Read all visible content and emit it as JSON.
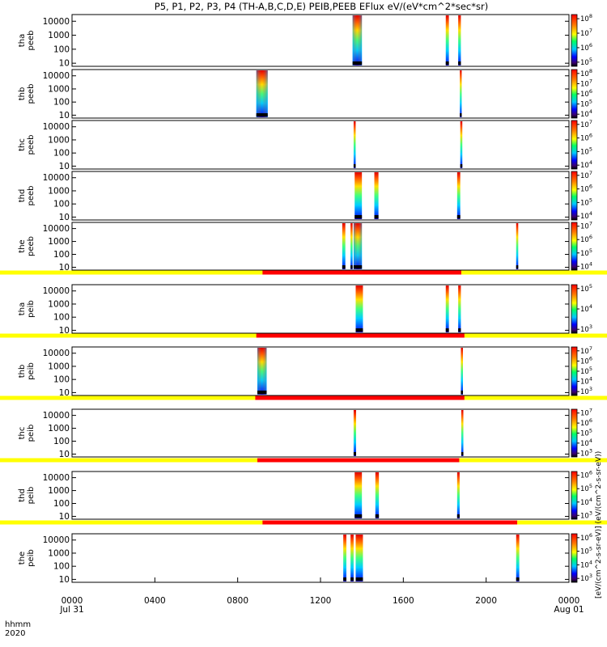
{
  "chart_data": {
    "type": "heatmap",
    "title": "P5, P1, P2, P3, P4 (TH-A,B,C,D,E) PEIB,PEEB EFlux eV/(eV*cm^2*sec*sr)",
    "x_axis": {
      "label_lines": [
        "hhmm",
        "2020"
      ],
      "ticks": [
        {
          "t": 0,
          "label": "0000",
          "sub": "Jul 31"
        },
        {
          "t": 4,
          "label": "0400",
          "sub": ""
        },
        {
          "t": 8,
          "label": "0800",
          "sub": ""
        },
        {
          "t": 12,
          "label": "1200",
          "sub": ""
        },
        {
          "t": 16,
          "label": "1600",
          "sub": ""
        },
        {
          "t": 20,
          "label": "2000",
          "sub": ""
        },
        {
          "t": 24,
          "label": "0000",
          "sub": "Aug 01"
        }
      ],
      "range_hours": [
        0,
        24
      ]
    },
    "y_scale": "log",
    "y_ticks": [
      "10",
      "100",
      "1000",
      "10000"
    ],
    "colorbar_label": "[eV/(cm^2-s-sr-eV)] (eV/(cm^2-s-sr-eV))",
    "panels": [
      {
        "ylabel": [
          "tha",
          "peeb"
        ],
        "cb_ticks": [
          "10^5",
          "10^6",
          "10^7",
          "10^8"
        ],
        "cb_exp": [
          5,
          6,
          7,
          8
        ],
        "bursts": [
          [
            13.55,
            14.0
          ],
          [
            18.05,
            18.2
          ],
          [
            18.65,
            18.78
          ]
        ],
        "state_bar": null
      },
      {
        "ylabel": [
          "thb",
          "peeb"
        ],
        "cb_ticks": [
          "10^4",
          "10^5",
          "10^6",
          "10^7",
          "10^8"
        ],
        "cb_exp": [
          4,
          5,
          6,
          7,
          8
        ],
        "bursts": [
          [
            8.9,
            9.45
          ],
          [
            18.73,
            18.82
          ]
        ],
        "state_bar": null
      },
      {
        "ylabel": [
          "thc",
          "peeb"
        ],
        "cb_ticks": [
          "10^4",
          "10^5",
          "10^6",
          "10^7"
        ],
        "cb_exp": [
          4,
          5,
          6,
          7
        ],
        "bursts": [
          [
            13.6,
            13.7
          ],
          [
            18.75,
            18.85
          ]
        ],
        "state_bar": null
      },
      {
        "ylabel": [
          "thd",
          "peeb"
        ],
        "cb_ticks": [
          "10^4",
          "10^5",
          "10^6",
          "10^7"
        ],
        "cb_exp": [
          4,
          5,
          6,
          7
        ],
        "bursts": [
          [
            13.65,
            14.0
          ],
          [
            14.6,
            14.8
          ],
          [
            18.6,
            18.75
          ]
        ],
        "state_bar": null
      },
      {
        "ylabel": [
          "the",
          "peeb"
        ],
        "cb_ticks": [
          "10^4",
          "10^5",
          "10^6",
          "10^7"
        ],
        "cb_exp": [
          4,
          5,
          6,
          7
        ],
        "bursts": [
          [
            13.05,
            13.2
          ],
          [
            13.45,
            13.55
          ],
          [
            13.6,
            14.0
          ],
          [
            21.45,
            21.55
          ]
        ],
        "state_bar": {
          "red": [
            9.2,
            18.8
          ]
        }
      },
      {
        "ylabel": [
          "tha",
          "peib"
        ],
        "cb_ticks": [
          "10^3",
          "10^4",
          "10^5"
        ],
        "cb_exp": [
          3,
          4,
          5
        ],
        "bursts": [
          [
            13.7,
            14.05
          ],
          [
            18.05,
            18.2
          ],
          [
            18.65,
            18.78
          ]
        ],
        "state_bar": {
          "red": [
            8.9,
            18.95
          ]
        }
      },
      {
        "ylabel": [
          "thb",
          "peib"
        ],
        "cb_ticks": [
          "10^3",
          "10^4",
          "10^5",
          "10^6",
          "10^7"
        ],
        "cb_exp": [
          3,
          4,
          5,
          6,
          7
        ],
        "bursts": [
          [
            8.95,
            9.4
          ],
          [
            18.78,
            18.88
          ]
        ],
        "state_bar": {
          "red": [
            8.85,
            18.95
          ]
        }
      },
      {
        "ylabel": [
          "thc",
          "peib"
        ],
        "cb_ticks": [
          "10^3",
          "10^4",
          "10^5",
          "10^6",
          "10^7"
        ],
        "cb_exp": [
          3,
          4,
          5,
          6,
          7
        ],
        "bursts": [
          [
            13.6,
            13.72
          ],
          [
            18.8,
            18.9
          ]
        ],
        "state_bar": {
          "red": [
            8.95,
            18.7
          ]
        }
      },
      {
        "ylabel": [
          "thd",
          "peib"
        ],
        "cb_ticks": [
          "10^3",
          "10^4",
          "10^5",
          "10^6"
        ],
        "cb_exp": [
          3,
          4,
          5,
          6
        ],
        "bursts": [
          [
            13.65,
            14.0
          ],
          [
            14.65,
            14.82
          ],
          [
            18.6,
            18.72
          ]
        ],
        "state_bar": {
          "red": [
            9.2,
            21.5
          ]
        }
      },
      {
        "ylabel": [
          "the",
          "peib"
        ],
        "cb_ticks": [
          "10^3",
          "10^4",
          "10^5",
          "10^6"
        ],
        "cb_exp": [
          3,
          4,
          5,
          6
        ],
        "bursts": [
          [
            13.1,
            13.25
          ],
          [
            13.45,
            13.6
          ],
          [
            13.7,
            14.05
          ],
          [
            21.45,
            21.6
          ]
        ],
        "state_bar": null
      }
    ]
  }
}
